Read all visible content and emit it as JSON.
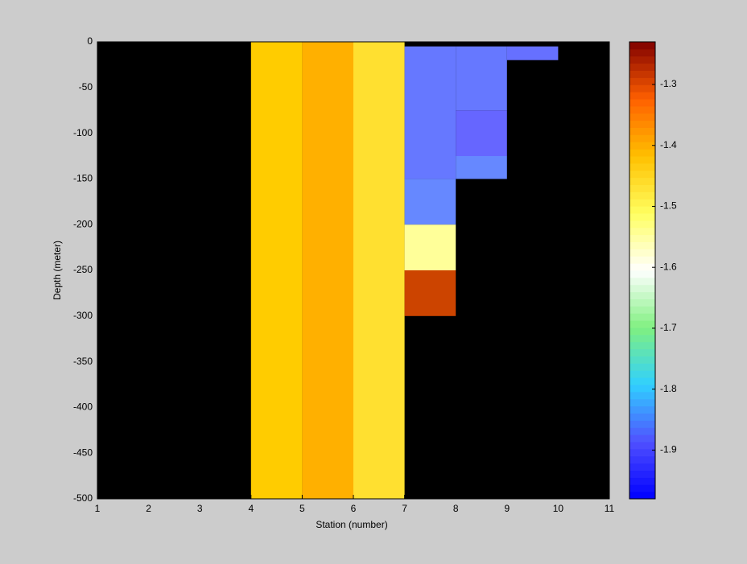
{
  "chart_data": {
    "type": "heatmap",
    "xlabel": "Station (number)",
    "ylabel": "Depth (meter)",
    "xlim": [
      1,
      11
    ],
    "xticks": [
      1,
      2,
      3,
      4,
      5,
      6,
      7,
      8,
      9,
      10,
      11
    ],
    "ylim": [
      -500,
      0
    ],
    "yticks": [
      0,
      -50,
      -100,
      -150,
      -200,
      -250,
      -300,
      -350,
      -400,
      -450,
      -500
    ],
    "background": "#000000",
    "cells": [
      {
        "x": [
          4,
          5
        ],
        "y": [
          0,
          -500
        ],
        "value": -1.43,
        "color": "#ffcc00"
      },
      {
        "x": [
          5,
          6
        ],
        "y": [
          0,
          -500
        ],
        "value": -1.4,
        "color": "#ffb000"
      },
      {
        "x": [
          6,
          7
        ],
        "y": [
          0,
          -500
        ],
        "value": -1.47,
        "color": "#ffe030"
      },
      {
        "x": [
          7,
          8
        ],
        "y": [
          -5,
          -150
        ],
        "value": -1.88,
        "color": "#6678ff"
      },
      {
        "x": [
          7,
          8
        ],
        "y": [
          -150,
          -200
        ],
        "value": -1.86,
        "color": "#6688ff"
      },
      {
        "x": [
          7,
          8
        ],
        "y": [
          -200,
          -250
        ],
        "value": -1.55,
        "color": "#ffff99"
      },
      {
        "x": [
          7,
          8
        ],
        "y": [
          -250,
          -300
        ],
        "value": -1.27,
        "color": "#cc4400"
      },
      {
        "x": [
          8,
          9
        ],
        "y": [
          -5,
          -75
        ],
        "value": -1.88,
        "color": "#6678ff"
      },
      {
        "x": [
          8,
          9
        ],
        "y": [
          -75,
          -125
        ],
        "value": -1.9,
        "color": "#6666ff"
      },
      {
        "x": [
          8,
          9
        ],
        "y": [
          -125,
          -150
        ],
        "value": -1.86,
        "color": "#6688ff"
      },
      {
        "x": [
          9,
          10
        ],
        "y": [
          -5,
          -20
        ],
        "value": -1.89,
        "color": "#6670ff"
      }
    ],
    "clim": [
      -1.98,
      -1.23
    ],
    "cticks": [
      -1.3,
      -1.4,
      -1.5,
      -1.6,
      -1.7,
      -1.8,
      -1.9
    ],
    "colormap": [
      "#0000ff",
      "#5050ff",
      "#30d0ff",
      "#80f080",
      "#ffffff",
      "#ffff60",
      "#ffc000",
      "#ff6000",
      "#800000"
    ]
  }
}
